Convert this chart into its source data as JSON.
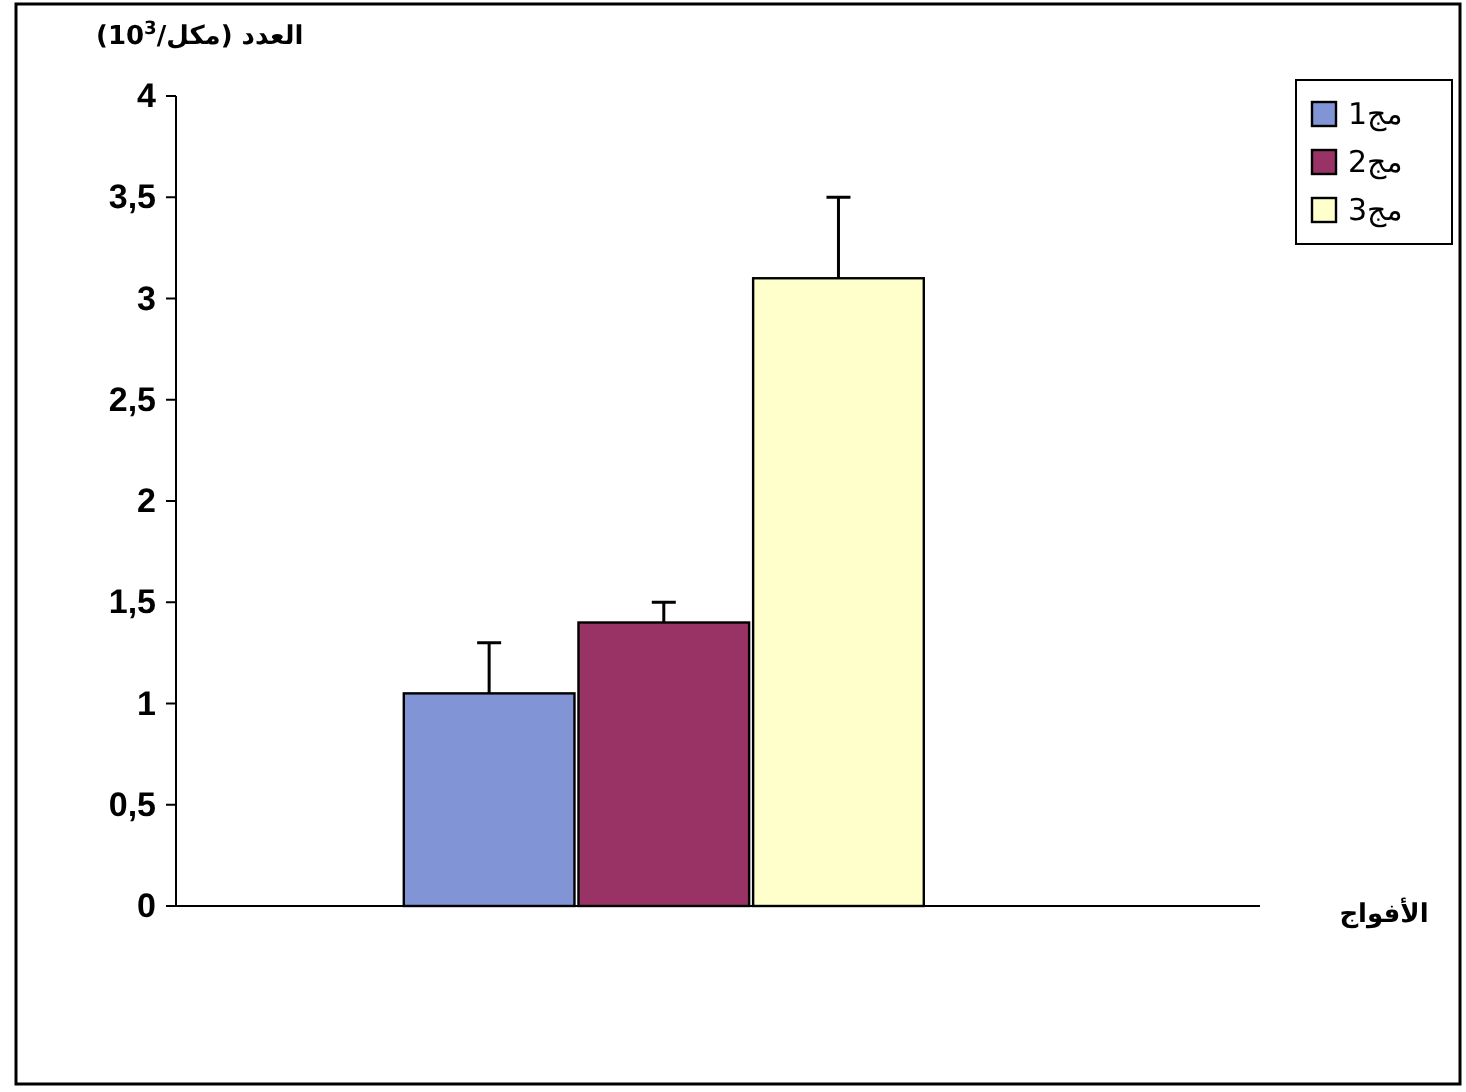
{
  "chart_data": {
    "type": "bar",
    "ylabel": "العدد (مكل/10$^{3}$)",
    "xlabel": "الأفواج",
    "categories": [
      null
    ],
    "series": [
      {
        "name": "مج1",
        "color": "#8094d6",
        "values": [
          1.05
        ],
        "errors": [
          [
            1.05,
            1.3
          ]
        ]
      },
      {
        "name": "مج2",
        "color": "#993366",
        "values": [
          1.4
        ],
        "errors": [
          [
            1.4,
            1.5
          ]
        ]
      },
      {
        "name": "مج3",
        "color": "#ffffcc",
        "values": [
          3.1
        ],
        "errors": [
          [
            3.1,
            3.5
          ]
        ]
      }
    ],
    "ylim": [
      0,
      4
    ],
    "yticks": [
      0,
      {
        "value": 0.5,
        "label": "0,5"
      },
      1,
      {
        "value": 1.5,
        "label": "1,5"
      },
      2,
      {
        "value": 2.5,
        "label": "2,5"
      },
      3,
      {
        "value": 3.5,
        "label": "3,5"
      },
      4
    ],
    "grid": false,
    "legend": "top right"
  }
}
